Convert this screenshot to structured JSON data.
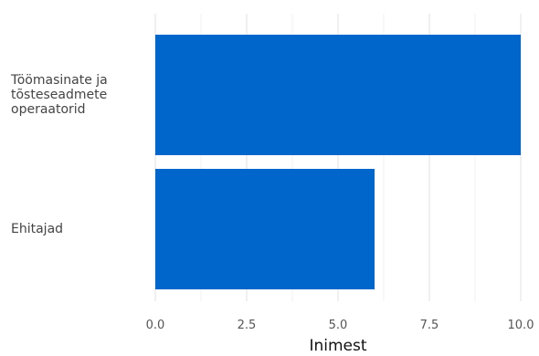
{
  "chart_data": {
    "type": "bar",
    "orientation": "horizontal",
    "categories": [
      [
        "Töömasinate ja",
        "tõsteseadmete",
        "operaatorid"
      ],
      [
        "Ehitajad"
      ]
    ],
    "values": [
      10,
      6
    ],
    "xlabel": "Inimest",
    "xlim": [
      0,
      10
    ],
    "xticks": [
      "0.0",
      "2.5",
      "5.0",
      "7.5",
      "10.0"
    ],
    "xtick_values": [
      0,
      2.5,
      5,
      7.5,
      10
    ],
    "bar_color": "#0066CC",
    "grid": "vertical",
    "grid_color": "#e6e6e6"
  }
}
